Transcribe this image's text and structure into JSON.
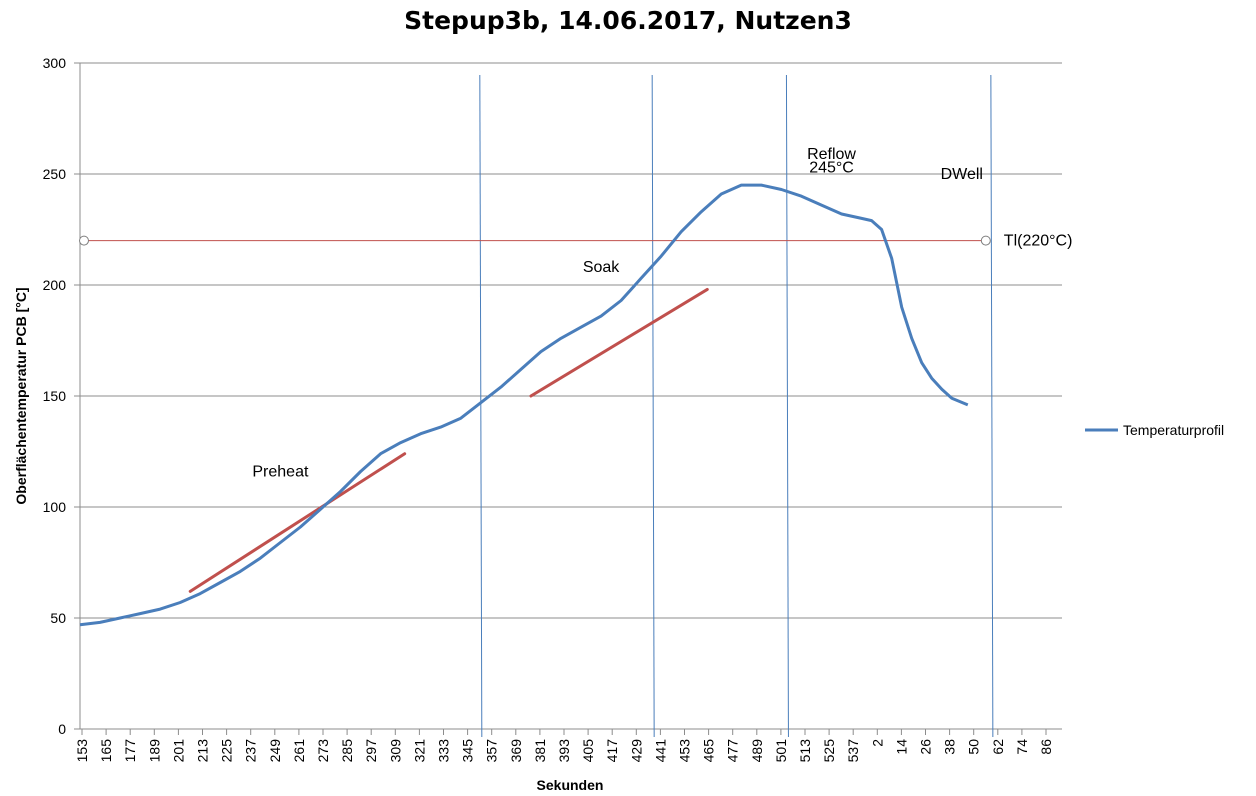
{
  "chart_data": {
    "type": "line",
    "title": "Stepup3b, 14.06.2017, Nutzen3",
    "xlabel": "Sekunden",
    "ylabel": "Oberflächentemperatur  PCB [°C]",
    "ylim": [
      0,
      300
    ],
    "yticks": [
      0,
      50,
      100,
      150,
      200,
      250,
      300
    ],
    "grid": true,
    "legend_position": "right",
    "x_tick_labels": [
      "153",
      "165",
      "177",
      "189",
      "201",
      "213",
      "225",
      "237",
      "249",
      "261",
      "273",
      "285",
      "297",
      "309",
      "321",
      "333",
      "345",
      "357",
      "369",
      "381",
      "393",
      "405",
      "417",
      "429",
      "441",
      "453",
      "465",
      "477",
      "489",
      "501",
      "513",
      "525",
      "537",
      "2",
      "14",
      "26",
      "38",
      "50",
      "62",
      "74",
      "86"
    ],
    "series": [
      {
        "name": "Temperaturprofil",
        "color": "#4a7ebb",
        "x": [
          0,
          1,
          2,
          3,
          4,
          5,
          6,
          7,
          8,
          9,
          10,
          11,
          12,
          13,
          14,
          15,
          16,
          17,
          18,
          19,
          20,
          21,
          22,
          23,
          24,
          25,
          26,
          27,
          28,
          29,
          30,
          31,
          32,
          33,
          34,
          35,
          36,
          37,
          38,
          39,
          39.5,
          40,
          40.5,
          41,
          41.5,
          42,
          42.5,
          43,
          43.5,
          44.3
        ],
        "values": [
          47,
          48,
          50,
          52,
          54,
          57,
          61,
          66,
          71,
          77,
          84,
          91,
          99,
          107,
          116,
          124,
          129,
          133,
          136,
          140,
          147,
          154,
          162,
          170,
          176,
          181,
          186,
          193,
          203,
          213,
          224,
          233,
          241,
          245,
          245,
          243,
          240,
          236,
          232,
          230,
          229,
          225,
          212,
          190,
          176,
          165,
          158,
          153,
          149,
          146
        ]
      }
    ],
    "reference_lines": [
      {
        "label": "Tl(220°C)",
        "y": 220,
        "color": "#c0504d"
      }
    ],
    "trend_lines": [
      {
        "x": [
          5.5,
          16.2
        ],
        "y": [
          62,
          124
        ],
        "color": "#c0504d"
      },
      {
        "x": [
          22.5,
          31.3
        ],
        "y": [
          150,
          198
        ],
        "color": "#c0504d"
      }
    ],
    "phase_dividers": [
      {
        "x": 20.0,
        "color": "#4a7ebb"
      },
      {
        "x": 28.6,
        "color": "#4a7ebb"
      },
      {
        "x": 35.3,
        "color": "#4a7ebb"
      },
      {
        "x": 45.5,
        "color": "#4a7ebb"
      }
    ],
    "annotations": [
      {
        "text": "Preheat",
        "x": 10,
        "y": 116
      },
      {
        "text": "Soak",
        "x": 26,
        "y": 208
      },
      {
        "text": "Reflow",
        "x": 37.5,
        "y": 259
      },
      {
        "text": "245°C",
        "x": 37.5,
        "y": 253
      },
      {
        "text": "DWell",
        "x": 44,
        "y": 250
      }
    ]
  }
}
